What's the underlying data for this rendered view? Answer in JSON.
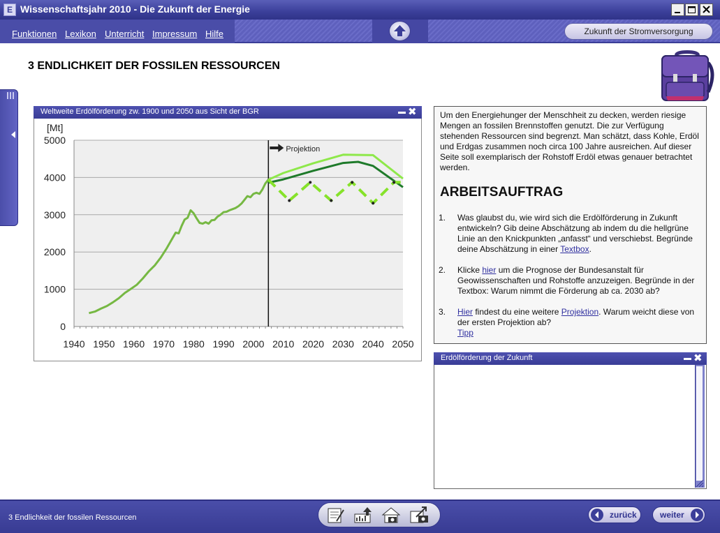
{
  "window": {
    "title": "Wissenschaftsjahr 2010 - Die Zukunft der Energie",
    "icon_letter": "E"
  },
  "menu": {
    "items": [
      "Funktionen",
      "Lexikon",
      "Unterricht",
      "Impressum",
      "Hilfe"
    ],
    "zukunft_button": "Zukunft der Stromversorgung"
  },
  "page": {
    "heading": "3 ENDLICHKEIT DER FOSSILEN RESSOURCEN"
  },
  "chart_panel": {
    "title": "Weltweite Erdölförderung zw. 1900 und 2050 aus Sicht der BGR"
  },
  "chart_data": {
    "type": "line",
    "ylabel": "[Mt]",
    "xlim": [
      1940,
      2050
    ],
    "ylim": [
      0,
      5000
    ],
    "x_ticks": [
      1940,
      1950,
      1960,
      1970,
      1980,
      1990,
      2000,
      2010,
      2020,
      2030,
      2040,
      2050
    ],
    "y_ticks": [
      0,
      1000,
      2000,
      3000,
      4000,
      5000
    ],
    "grid": true,
    "annotation": "Projektion",
    "projection_start": 2005,
    "colors": {
      "history": "#6aa84f",
      "light_green": "#8ee84a",
      "dark_green": "#1e7a2a",
      "dashed": "#86e22a"
    },
    "series": [
      {
        "style": "solid",
        "color": "#76b843",
        "x": [
          1945,
          1947,
          1949,
          1951,
          1953,
          1955,
          1957,
          1959,
          1961,
          1963,
          1965,
          1967,
          1969,
          1971,
          1973,
          1974,
          1975,
          1976,
          1977,
          1978,
          1979,
          1980,
          1981,
          1982,
          1983,
          1984,
          1985,
          1986,
          1987,
          1988,
          1989,
          1990,
          1991,
          1992,
          1993,
          1994,
          1995,
          1996,
          1997,
          1998,
          1999,
          2000,
          2001,
          2002,
          2003,
          2004,
          2005
        ],
        "y": [
          360,
          400,
          480,
          550,
          650,
          760,
          900,
          1010,
          1120,
          1290,
          1480,
          1640,
          1850,
          2100,
          2380,
          2520,
          2500,
          2700,
          2870,
          2920,
          3120,
          3040,
          2900,
          2780,
          2760,
          2800,
          2760,
          2850,
          2860,
          2950,
          3000,
          3070,
          3080,
          3120,
          3150,
          3180,
          3230,
          3300,
          3400,
          3500,
          3470,
          3560,
          3590,
          3560,
          3680,
          3840,
          3940
        ]
      },
      {
        "style": "solid",
        "color": "#8ee84a",
        "x": [
          2005,
          2010,
          2020,
          2030,
          2040,
          2050
        ],
        "y": [
          3940,
          4120,
          4380,
          4610,
          4600,
          3970
        ]
      },
      {
        "style": "solid",
        "color": "#1e7a2a",
        "x": [
          2005,
          2010,
          2020,
          2030,
          2035,
          2040,
          2050
        ],
        "y": [
          3860,
          3950,
          4180,
          4390,
          4420,
          4310,
          3740
        ]
      },
      {
        "style": "dashed",
        "color": "#86e22a",
        "x": [
          2005,
          2012,
          2019,
          2026,
          2033,
          2040,
          2047,
          2050
        ],
        "y": [
          3940,
          3380,
          3870,
          3380,
          3870,
          3310,
          3870,
          3870
        ]
      }
    ],
    "knick_points": {
      "x": [
        2012,
        2019,
        2026,
        2033,
        2040,
        2047
      ],
      "y": [
        3380,
        3870,
        3380,
        3870,
        3310,
        3870
      ]
    }
  },
  "text_panel": {
    "intro": "Um den Energiehunger der Menschheit zu decken, werden riesige Mengen an fossilen Brennstoffen genutzt. Die zur Verfügung stehenden Ressourcen sind begrenzt. Man schätzt, dass Kohle, Erdöl und Erdgas zusammen noch circa 100 Jahre ausreichen. Auf dieser Seite soll exemplarisch der Rohstoff Erdöl etwas genauer betrachtet werden.",
    "task_heading": "ARBEITSAUFTRAG",
    "task1": {
      "num": "1.",
      "text": "Was glaubst du, wie wird sich die Erdölförderung in Zukunft entwickeln? Gib deine Abschätzung ab indem du die hellgrüne Linie an den Knickpunkten „anfasst“ und verschiebst. Begründe deine Abschätzung in einer ",
      "link": "Textbox",
      "end": "."
    },
    "task2": {
      "num": "2.",
      "pre": "Klicke ",
      "link": "hier",
      "text": " um die Prognose der Bundesanstalt für Geowissenschaften und Rohstoffe anzuzeigen. Begründe in der Textbox: Warum nimmt die Förderung ab ca. 2030 ab?"
    },
    "task3": {
      "num": "3.",
      "link1": "Hier",
      "mid": " findest du eine weitere ",
      "link2": "Projektion",
      "text": ". Warum weicht diese von der ersten Projektion ab?",
      "tip": "Tipp"
    }
  },
  "answer_panel": {
    "title": "Erdölförderung der Zukunft"
  },
  "bottom": {
    "status": "3 Endlichkeit der fossilen Ressourcen",
    "back": "zurück",
    "next": "weiter"
  }
}
